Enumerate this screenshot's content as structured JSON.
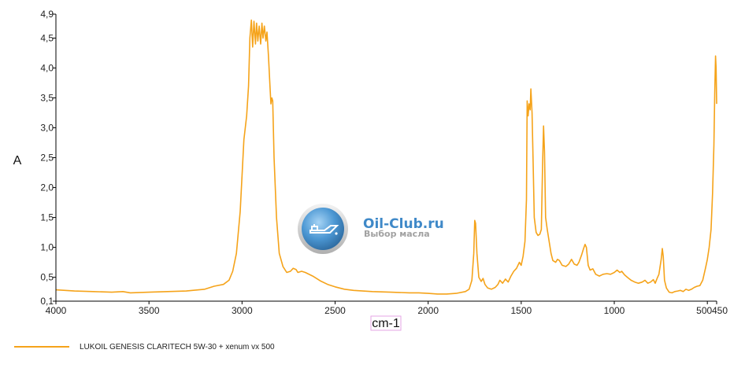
{
  "chart_data": {
    "type": "line",
    "xlabel": "cm-1",
    "ylabel": "A",
    "xlim": [
      4000,
      450
    ],
    "ylim": [
      0.1,
      4.9
    ],
    "x_ticks": [
      {
        "value": 4000,
        "label": "4000"
      },
      {
        "value": 3500,
        "label": "3500"
      },
      {
        "value": 3000,
        "label": "3000"
      },
      {
        "value": 2500,
        "label": "2500"
      },
      {
        "value": 2000,
        "label": "2000"
      },
      {
        "value": 1500,
        "label": "1500"
      },
      {
        "value": 1000,
        "label": "1000"
      },
      {
        "value": 500,
        "label": "500"
      },
      {
        "value": 450,
        "label": "450"
      }
    ],
    "y_ticks": [
      {
        "value": 0.1,
        "label": "0,1"
      },
      {
        "value": 0.5,
        "label": "0,5"
      },
      {
        "value": 1.0,
        "label": "1,0"
      },
      {
        "value": 1.5,
        "label": "1,5"
      },
      {
        "value": 2.0,
        "label": "2,0"
      },
      {
        "value": 2.5,
        "label": "2,5"
      },
      {
        "value": 3.0,
        "label": "3,0"
      },
      {
        "value": 3.5,
        "label": "3,5"
      },
      {
        "value": 4.0,
        "label": "4,0"
      },
      {
        "value": 4.5,
        "label": "4,5"
      },
      {
        "value": 4.9,
        "label": "4,9"
      }
    ],
    "grid": false,
    "legend_position": "bottom-left",
    "series": [
      {
        "name": "LUKOIL GENESIS CLARITECH 5W-30 + xenum vx 500",
        "color": "#f5a31a",
        "points": [
          [
            4000,
            0.29
          ],
          [
            3900,
            0.27
          ],
          [
            3800,
            0.26
          ],
          [
            3700,
            0.25
          ],
          [
            3640,
            0.26
          ],
          [
            3600,
            0.24
          ],
          [
            3500,
            0.25
          ],
          [
            3400,
            0.26
          ],
          [
            3300,
            0.27
          ],
          [
            3200,
            0.3
          ],
          [
            3150,
            0.35
          ],
          [
            3100,
            0.38
          ],
          [
            3070,
            0.45
          ],
          [
            3050,
            0.6
          ],
          [
            3030,
            0.9
          ],
          [
            3010,
            1.6
          ],
          [
            2990,
            2.8
          ],
          [
            2975,
            3.2
          ],
          [
            2965,
            3.7
          ],
          [
            2958,
            4.5
          ],
          [
            2950,
            4.8
          ],
          [
            2943,
            4.35
          ],
          [
            2936,
            4.78
          ],
          [
            2928,
            4.4
          ],
          [
            2922,
            4.75
          ],
          [
            2915,
            4.45
          ],
          [
            2908,
            4.7
          ],
          [
            2900,
            4.4
          ],
          [
            2893,
            4.75
          ],
          [
            2887,
            4.5
          ],
          [
            2880,
            4.7
          ],
          [
            2872,
            4.45
          ],
          [
            2866,
            4.6
          ],
          [
            2858,
            4.2
          ],
          [
            2850,
            3.7
          ],
          [
            2845,
            3.4
          ],
          [
            2840,
            3.5
          ],
          [
            2835,
            3.45
          ],
          [
            2828,
            2.5
          ],
          [
            2815,
            1.5
          ],
          [
            2800,
            0.9
          ],
          [
            2780,
            0.68
          ],
          [
            2760,
            0.58
          ],
          [
            2740,
            0.6
          ],
          [
            2725,
            0.65
          ],
          [
            2710,
            0.63
          ],
          [
            2700,
            0.58
          ],
          [
            2680,
            0.6
          ],
          [
            2660,
            0.58
          ],
          [
            2620,
            0.52
          ],
          [
            2580,
            0.44
          ],
          [
            2540,
            0.38
          ],
          [
            2500,
            0.34
          ],
          [
            2450,
            0.3
          ],
          [
            2400,
            0.28
          ],
          [
            2300,
            0.26
          ],
          [
            2200,
            0.25
          ],
          [
            2100,
            0.24
          ],
          [
            2050,
            0.24
          ],
          [
            2000,
            0.23
          ],
          [
            1950,
            0.22
          ],
          [
            1900,
            0.22
          ],
          [
            1850,
            0.23
          ],
          [
            1800,
            0.26
          ],
          [
            1780,
            0.3
          ],
          [
            1765,
            0.45
          ],
          [
            1755,
            0.9
          ],
          [
            1750,
            1.45
          ],
          [
            1745,
            1.4
          ],
          [
            1738,
            0.9
          ],
          [
            1728,
            0.5
          ],
          [
            1715,
            0.43
          ],
          [
            1705,
            0.48
          ],
          [
            1695,
            0.38
          ],
          [
            1680,
            0.32
          ],
          [
            1660,
            0.3
          ],
          [
            1640,
            0.33
          ],
          [
            1625,
            0.38
          ],
          [
            1615,
            0.45
          ],
          [
            1600,
            0.4
          ],
          [
            1585,
            0.47
          ],
          [
            1570,
            0.42
          ],
          [
            1555,
            0.52
          ],
          [
            1540,
            0.6
          ],
          [
            1525,
            0.65
          ],
          [
            1510,
            0.75
          ],
          [
            1500,
            0.7
          ],
          [
            1490,
            0.85
          ],
          [
            1480,
            1.1
          ],
          [
            1472,
            1.8
          ],
          [
            1468,
            3.45
          ],
          [
            1463,
            3.2
          ],
          [
            1458,
            3.4
          ],
          [
            1452,
            3.3
          ],
          [
            1448,
            3.65
          ],
          [
            1442,
            3.25
          ],
          [
            1436,
            2.4
          ],
          [
            1430,
            1.5
          ],
          [
            1420,
            1.25
          ],
          [
            1410,
            1.2
          ],
          [
            1400,
            1.22
          ],
          [
            1392,
            1.3
          ],
          [
            1385,
            2.4
          ],
          [
            1380,
            3.03
          ],
          [
            1375,
            2.6
          ],
          [
            1369,
            1.5
          ],
          [
            1360,
            1.3
          ],
          [
            1350,
            1.1
          ],
          [
            1340,
            0.9
          ],
          [
            1330,
            0.78
          ],
          [
            1315,
            0.75
          ],
          [
            1305,
            0.8
          ],
          [
            1295,
            0.78
          ],
          [
            1280,
            0.7
          ],
          [
            1260,
            0.68
          ],
          [
            1245,
            0.72
          ],
          [
            1230,
            0.8
          ],
          [
            1215,
            0.72
          ],
          [
            1200,
            0.7
          ],
          [
            1190,
            0.75
          ],
          [
            1175,
            0.88
          ],
          [
            1165,
            0.98
          ],
          [
            1157,
            1.05
          ],
          [
            1150,
            1.0
          ],
          [
            1140,
            0.7
          ],
          [
            1130,
            0.62
          ],
          [
            1115,
            0.64
          ],
          [
            1100,
            0.55
          ],
          [
            1080,
            0.52
          ],
          [
            1060,
            0.55
          ],
          [
            1040,
            0.56
          ],
          [
            1020,
            0.55
          ],
          [
            1000,
            0.58
          ],
          [
            985,
            0.62
          ],
          [
            970,
            0.58
          ],
          [
            960,
            0.6
          ],
          [
            945,
            0.54
          ],
          [
            930,
            0.5
          ],
          [
            910,
            0.45
          ],
          [
            890,
            0.42
          ],
          [
            870,
            0.4
          ],
          [
            850,
            0.42
          ],
          [
            835,
            0.45
          ],
          [
            820,
            0.4
          ],
          [
            805,
            0.42
          ],
          [
            790,
            0.46
          ],
          [
            780,
            0.4
          ],
          [
            770,
            0.48
          ],
          [
            760,
            0.55
          ],
          [
            748,
            0.8
          ],
          [
            742,
            0.98
          ],
          [
            737,
            0.85
          ],
          [
            730,
            0.45
          ],
          [
            720,
            0.32
          ],
          [
            705,
            0.25
          ],
          [
            690,
            0.24
          ],
          [
            675,
            0.26
          ],
          [
            660,
            0.27
          ],
          [
            645,
            0.28
          ],
          [
            630,
            0.26
          ],
          [
            615,
            0.3
          ],
          [
            600,
            0.28
          ],
          [
            585,
            0.3
          ],
          [
            570,
            0.33
          ],
          [
            555,
            0.35
          ],
          [
            540,
            0.36
          ],
          [
            525,
            0.45
          ],
          [
            510,
            0.65
          ],
          [
            500,
            0.8
          ],
          [
            490,
            1.0
          ],
          [
            480,
            1.3
          ],
          [
            472,
            1.9
          ],
          [
            465,
            2.7
          ],
          [
            460,
            3.6
          ],
          [
            456,
            4.2
          ],
          [
            453,
            4.0
          ],
          [
            450,
            3.4
          ]
        ]
      }
    ]
  },
  "watermark": {
    "logo": "oil-can-icon",
    "title": "Oil-Club.ru",
    "subtitle": "Выбор масла"
  },
  "colors": {
    "series": "#f5a31a",
    "axis": "#000000",
    "watermark_blue": "#2f7fc4"
  }
}
